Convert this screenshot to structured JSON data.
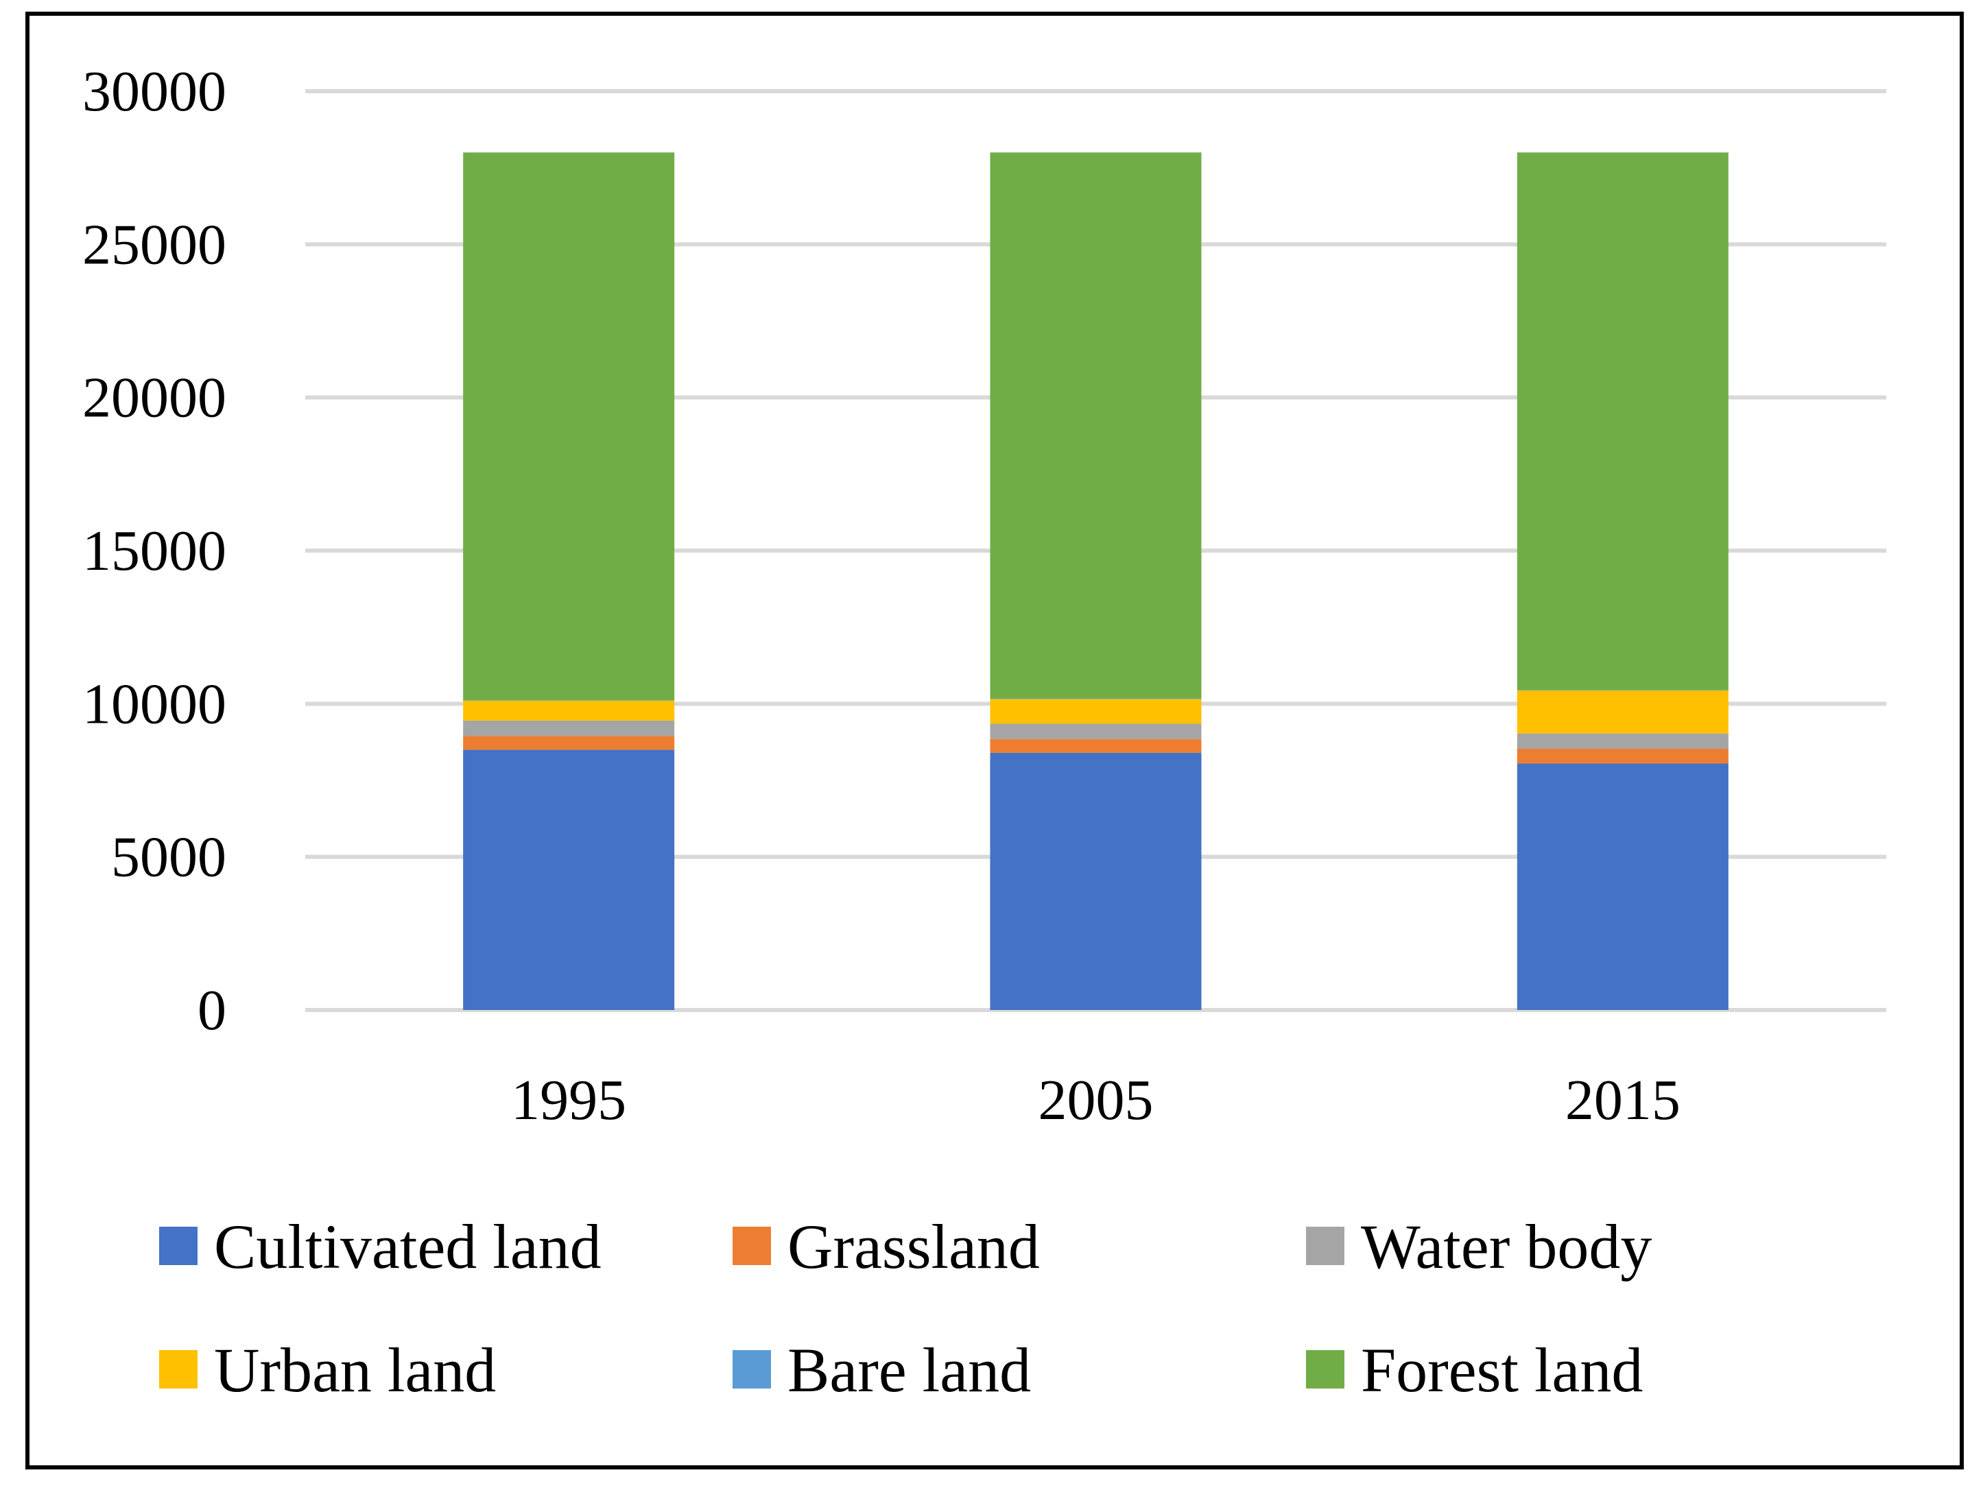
{
  "chart_data": {
    "type": "bar",
    "stacked": true,
    "title": "",
    "xlabel": "",
    "ylabel": "",
    "ylim": [
      0,
      30000
    ],
    "yticks": [
      0,
      5000,
      10000,
      15000,
      20000,
      25000,
      30000
    ],
    "grid": true,
    "legend_position": "bottom",
    "categories": [
      "1995",
      "2005",
      "2015"
    ],
    "series": [
      {
        "name": "Cultivated land",
        "color": "#4472c4",
        "values": [
          8500,
          8400,
          8050
        ]
      },
      {
        "name": "Grassland",
        "color": "#ed7d31",
        "values": [
          450,
          450,
          480
        ]
      },
      {
        "name": "Water body",
        "color": "#a5a5a5",
        "values": [
          500,
          500,
          500
        ]
      },
      {
        "name": "Urban land",
        "color": "#ffc000",
        "values": [
          650,
          800,
          1400
        ]
      },
      {
        "name": "Bare land",
        "color": "#5b9bd5",
        "values": [
          10,
          10,
          10
        ]
      },
      {
        "name": "Forest land",
        "color": "#70ad47",
        "values": [
          17890,
          17840,
          17560
        ]
      }
    ]
  }
}
